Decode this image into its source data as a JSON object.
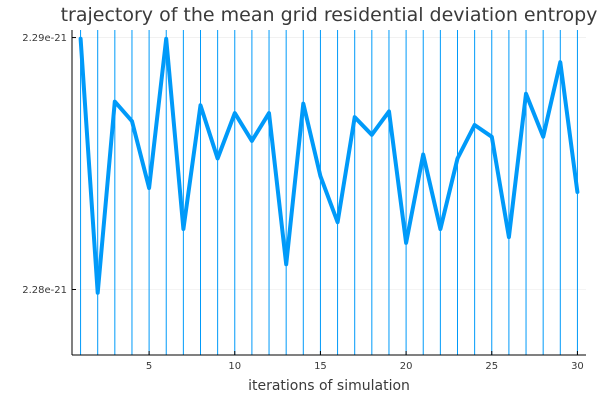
{
  "chart_data": {
    "type": "line",
    "title": "trajectory of the mean grid residential deviation entropy",
    "xlabel": "iterations of simulation",
    "ylabel": "",
    "xlim": [
      0.5,
      30.5
    ],
    "ylim": [
      2.2903e-21,
      2.2774e-21
    ],
    "x_ticks": [
      5,
      10,
      15,
      20,
      25,
      30
    ],
    "x_tick_labels": [
      "5",
      "10",
      "15",
      "20",
      "25",
      "30"
    ],
    "y_ticks": [
      2.28e-21,
      2.29e-21
    ],
    "y_tick_labels": [
      "2.28e-21",
      "2.29e-21"
    ],
    "grid": true,
    "series": [
      {
        "color": "#009af9",
        "x": [
          1,
          2,
          3,
          4,
          5,
          6,
          7,
          8,
          9,
          10,
          11,
          12,
          13,
          14,
          15,
          16,
          17,
          18,
          19,
          20,
          21,
          22,
          23,
          24,
          25,
          26,
          27,
          28,
          29,
          30
        ],
        "values": [
          2.28995e-21,
          2.27987e-21,
          2.28746e-21,
          2.28668e-21,
          2.28403e-21,
          2.28995e-21,
          2.2824e-21,
          2.28731e-21,
          2.2852e-21,
          2.287e-21,
          2.2859e-21,
          2.287e-21,
          2.281e-21,
          2.28738e-21,
          2.2845e-21,
          2.28267e-21,
          2.28684e-21,
          2.28614e-21,
          2.28707e-21,
          2.28185e-21,
          2.28536e-21,
          2.2824e-21,
          2.2852e-21,
          2.28653e-21,
          2.28606e-21,
          2.28208e-21,
          2.28777e-21,
          2.28606e-21,
          2.28902e-21,
          2.28387e-21
        ]
      }
    ]
  }
}
